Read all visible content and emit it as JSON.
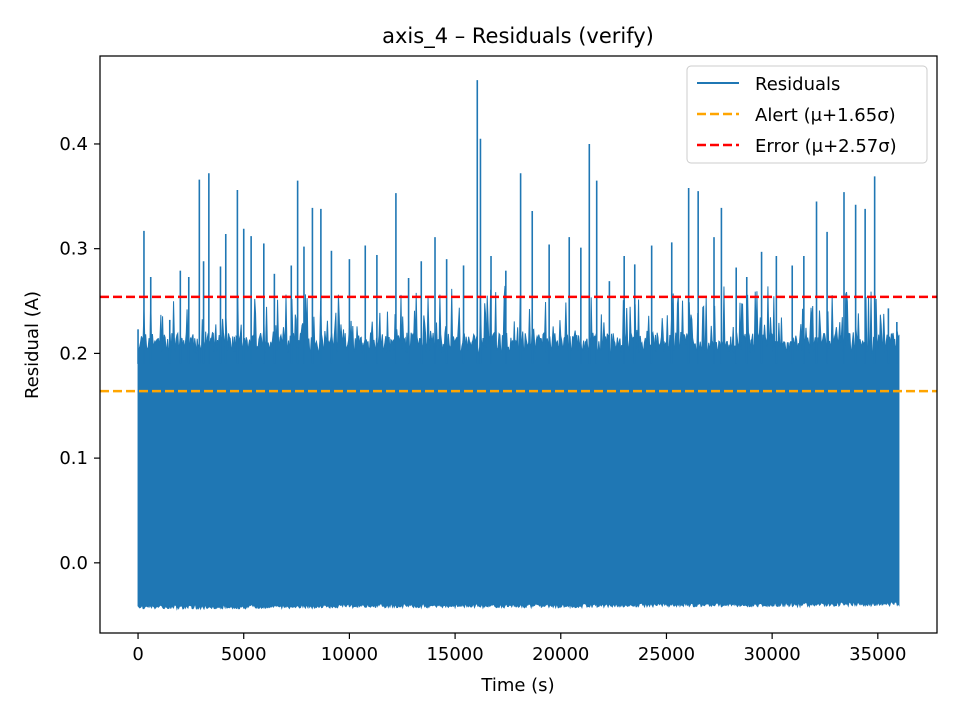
{
  "chart_data": {
    "type": "line",
    "title": "axis_4 – Residuals (verify)",
    "xlabel": "Time (s)",
    "ylabel": "Residual (A)",
    "xlim": [
      -1800,
      37800
    ],
    "ylim": [
      -0.067,
      0.484
    ],
    "x_ticks": [
      0,
      5000,
      10000,
      15000,
      20000,
      25000,
      30000,
      35000
    ],
    "y_ticks": [
      0.0,
      0.1,
      0.2,
      0.3,
      0.4
    ],
    "grid": false,
    "legend_position": "top-right",
    "series": [
      {
        "name": "Residuals",
        "color": "#1f77b4",
        "style": "solid",
        "x_range": [
          0,
          36000
        ],
        "band_min": [
          [
            0,
            -0.04
          ],
          [
            5000,
            -0.04
          ],
          [
            10000,
            -0.039
          ],
          [
            15000,
            -0.039
          ],
          [
            20000,
            -0.039
          ],
          [
            25000,
            -0.038
          ],
          [
            30000,
            -0.038
          ],
          [
            36000,
            -0.037
          ]
        ],
        "band_max_typical": [
          0.2,
          0.22
        ],
        "peaks": [
          [
            0,
            0.223
          ],
          [
            280,
            0.317
          ],
          [
            600,
            0.273
          ],
          [
            1500,
            0.232
          ],
          [
            2000,
            0.279
          ],
          [
            2400,
            0.273
          ],
          [
            2900,
            0.366
          ],
          [
            3100,
            0.288
          ],
          [
            3350,
            0.372
          ],
          [
            3900,
            0.283
          ],
          [
            4150,
            0.314
          ],
          [
            4700,
            0.356
          ],
          [
            5000,
            0.319
          ],
          [
            5350,
            0.312
          ],
          [
            5950,
            0.305
          ],
          [
            6450,
            0.276
          ],
          [
            7250,
            0.284
          ],
          [
            7550,
            0.365
          ],
          [
            7850,
            0.302
          ],
          [
            8250,
            0.339
          ],
          [
            8650,
            0.338
          ],
          [
            9150,
            0.298
          ],
          [
            10000,
            0.29
          ],
          [
            10750,
            0.303
          ],
          [
            11300,
            0.294
          ],
          [
            12200,
            0.353
          ],
          [
            12800,
            0.272
          ],
          [
            13400,
            0.288
          ],
          [
            14050,
            0.311
          ],
          [
            14600,
            0.29
          ],
          [
            15400,
            0.284
          ],
          [
            16050,
            0.461
          ],
          [
            16200,
            0.405
          ],
          [
            16700,
            0.293
          ],
          [
            17400,
            0.279
          ],
          [
            18100,
            0.372
          ],
          [
            18650,
            0.336
          ],
          [
            19450,
            0.304
          ],
          [
            20400,
            0.311
          ],
          [
            20950,
            0.301
          ],
          [
            21350,
            0.4
          ],
          [
            21700,
            0.365
          ],
          [
            22300,
            0.269
          ],
          [
            23000,
            0.293
          ],
          [
            23500,
            0.285
          ],
          [
            24300,
            0.303
          ],
          [
            25250,
            0.306
          ],
          [
            26050,
            0.358
          ],
          [
            26500,
            0.355
          ],
          [
            27250,
            0.311
          ],
          [
            27600,
            0.339
          ],
          [
            28300,
            0.282
          ],
          [
            28800,
            0.273
          ],
          [
            29500,
            0.297
          ],
          [
            30200,
            0.293
          ],
          [
            30950,
            0.284
          ],
          [
            31500,
            0.293
          ],
          [
            32100,
            0.345
          ],
          [
            32600,
            0.316
          ],
          [
            33400,
            0.354
          ],
          [
            33950,
            0.342
          ],
          [
            34400,
            0.338
          ],
          [
            34850,
            0.369
          ],
          [
            35500,
            0.243
          ],
          [
            35900,
            0.23
          ]
        ]
      },
      {
        "name": "Alert (μ+1.65σ)",
        "color": "#ffa500",
        "style": "dashed",
        "y": 0.164
      },
      {
        "name": "Error (μ+2.57σ)",
        "color": "#ff0000",
        "style": "dashed",
        "y": 0.254
      }
    ]
  }
}
